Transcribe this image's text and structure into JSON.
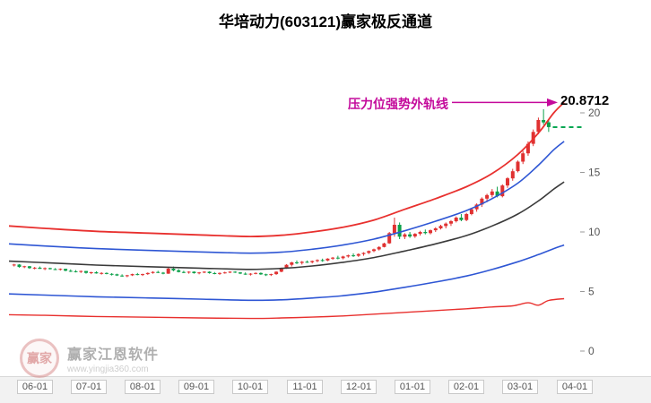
{
  "page": {
    "title": "华培动力(603121)赢家极反通道"
  },
  "annotation": {
    "label": "压力位强势外轨线",
    "value": "20.8712"
  },
  "watermark": {
    "logo": "赢家",
    "name": "赢家江恩软件",
    "url": "www.yingjia360.com"
  },
  "chart_data": {
    "type": "candlestick",
    "title": "华培动力(603121)赢家极反通道",
    "stock_name": "华培动力",
    "symbol": "603121",
    "channel_name": "赢家极反通道",
    "resistance": {
      "label": "压力位强势外轨线",
      "value": 20.8712
    },
    "last_close_line": {
      "value": 18.8,
      "x_from": 104.8,
      "x_to": 111,
      "color": "#00a651",
      "style": "dashed"
    },
    "ylim": [
      0,
      23
    ],
    "y_ticks": [
      0,
      5,
      10,
      15,
      20
    ],
    "x_domain": [
      -1,
      111
    ],
    "x_ticks": [
      {
        "label": "06-01",
        "i": 4
      },
      {
        "label": "07-01",
        "i": 14.5
      },
      {
        "label": "08-01",
        "i": 25
      },
      {
        "label": "09-01",
        "i": 35.5
      },
      {
        "label": "10-01",
        "i": 46
      },
      {
        "label": "11-01",
        "i": 56.5
      },
      {
        "label": "12-01",
        "i": 67
      },
      {
        "label": "01-01",
        "i": 77.5
      },
      {
        "label": "02-01",
        "i": 88
      },
      {
        "label": "03-01",
        "i": 98.5
      },
      {
        "label": "04-01",
        "i": 109
      }
    ],
    "colors": {
      "up": "#e03131",
      "down": "#0ca04a",
      "annotation": "#c40a9b"
    },
    "candles": [
      [
        7.2,
        7.32,
        7.1,
        7.26
      ],
      [
        7.26,
        7.3,
        7.0,
        7.06
      ],
      [
        7.06,
        7.16,
        6.96,
        7.12
      ],
      [
        7.12,
        7.14,
        6.9,
        6.96
      ],
      [
        6.96,
        7.06,
        6.86,
        7.0
      ],
      [
        7.0,
        7.1,
        6.9,
        6.9
      ],
      [
        6.9,
        7.02,
        6.8,
        6.96
      ],
      [
        6.96,
        7.0,
        6.84,
        6.88
      ],
      [
        6.88,
        6.96,
        6.8,
        6.84
      ],
      [
        6.84,
        6.94,
        6.76,
        6.9
      ],
      [
        6.9,
        6.92,
        6.7,
        6.74
      ],
      [
        6.74,
        6.86,
        6.64,
        6.7
      ],
      [
        6.7,
        6.8,
        6.6,
        6.66
      ],
      [
        6.66,
        6.76,
        6.56,
        6.72
      ],
      [
        6.72,
        6.72,
        6.5,
        6.56
      ],
      [
        6.56,
        6.66,
        6.46,
        6.62
      ],
      [
        6.62,
        6.7,
        6.5,
        6.52
      ],
      [
        6.52,
        6.62,
        6.42,
        6.56
      ],
      [
        6.56,
        6.6,
        6.44,
        6.48
      ],
      [
        6.48,
        6.54,
        6.34,
        6.44
      ],
      [
        6.44,
        6.5,
        6.3,
        6.34
      ],
      [
        6.34,
        6.44,
        6.24,
        6.3
      ],
      [
        6.3,
        6.4,
        6.2,
        6.36
      ],
      [
        6.36,
        6.5,
        6.3,
        6.46
      ],
      [
        6.46,
        6.56,
        6.36,
        6.4
      ],
      [
        6.4,
        6.5,
        6.3,
        6.46
      ],
      [
        6.46,
        6.6,
        6.4,
        6.56
      ],
      [
        6.56,
        6.7,
        6.5,
        6.64
      ],
      [
        6.64,
        6.74,
        6.54,
        6.58
      ],
      [
        6.58,
        6.64,
        6.44,
        6.5
      ],
      [
        6.5,
        7.0,
        6.48,
        6.92
      ],
      [
        6.92,
        7.1,
        6.7,
        6.78
      ],
      [
        6.78,
        6.88,
        6.6,
        6.64
      ],
      [
        6.64,
        6.74,
        6.54,
        6.6
      ],
      [
        6.6,
        6.7,
        6.5,
        6.66
      ],
      [
        6.66,
        6.7,
        6.5,
        6.54
      ],
      [
        6.54,
        6.64,
        6.44,
        6.6
      ],
      [
        6.6,
        6.7,
        6.54,
        6.66
      ],
      [
        6.66,
        6.7,
        6.5,
        6.54
      ],
      [
        6.54,
        6.64,
        6.44,
        6.5
      ],
      [
        6.5,
        6.6,
        6.4,
        6.56
      ],
      [
        6.56,
        6.66,
        6.5,
        6.6
      ],
      [
        6.6,
        6.7,
        6.54,
        6.66
      ],
      [
        6.66,
        6.7,
        6.56,
        6.6
      ],
      [
        6.6,
        6.64,
        6.46,
        6.5
      ],
      [
        6.5,
        6.6,
        6.4,
        6.44
      ],
      [
        6.44,
        6.54,
        6.34,
        6.5
      ],
      [
        6.5,
        6.6,
        6.44,
        6.56
      ],
      [
        6.56,
        6.6,
        6.4,
        6.44
      ],
      [
        6.44,
        6.5,
        6.3,
        6.4
      ],
      [
        6.4,
        6.5,
        6.3,
        6.46
      ],
      [
        6.46,
        6.7,
        6.4,
        6.66
      ],
      [
        6.66,
        7.0,
        6.62,
        6.96
      ],
      [
        6.96,
        7.3,
        6.9,
        7.24
      ],
      [
        7.24,
        7.5,
        7.1,
        7.44
      ],
      [
        7.44,
        7.6,
        7.3,
        7.4
      ],
      [
        7.4,
        7.56,
        7.26,
        7.5
      ],
      [
        7.5,
        7.6,
        7.4,
        7.46
      ],
      [
        7.46,
        7.6,
        7.36,
        7.56
      ],
      [
        7.56,
        7.7,
        7.46,
        7.64
      ],
      [
        7.64,
        7.76,
        7.5,
        7.6
      ],
      [
        7.6,
        7.8,
        7.54,
        7.76
      ],
      [
        7.76,
        7.9,
        7.66,
        7.84
      ],
      [
        7.84,
        8.0,
        7.7,
        7.8
      ],
      [
        7.8,
        8.0,
        7.7,
        7.94
      ],
      [
        7.94,
        8.1,
        7.84,
        8.04
      ],
      [
        8.04,
        8.2,
        7.9,
        8.0
      ],
      [
        8.0,
        8.2,
        7.9,
        8.14
      ],
      [
        8.14,
        8.3,
        8.0,
        8.24
      ],
      [
        8.24,
        8.44,
        8.14,
        8.4
      ],
      [
        8.4,
        8.6,
        8.3,
        8.54
      ],
      [
        8.54,
        8.8,
        8.44,
        8.74
      ],
      [
        8.74,
        9.1,
        8.7,
        9.04
      ],
      [
        9.04,
        10.0,
        9.0,
        9.9
      ],
      [
        9.9,
        11.2,
        9.6,
        10.6
      ],
      [
        10.6,
        10.8,
        9.4,
        9.6
      ],
      [
        9.6,
        9.9,
        9.4,
        9.8
      ],
      [
        9.8,
        10.0,
        9.5,
        9.62
      ],
      [
        9.62,
        9.9,
        9.5,
        9.84
      ],
      [
        9.84,
        10.1,
        9.7,
        10.0
      ],
      [
        10.0,
        10.2,
        9.8,
        9.9
      ],
      [
        9.9,
        10.2,
        9.8,
        10.14
      ],
      [
        10.14,
        10.4,
        10.0,
        10.3
      ],
      [
        10.3,
        10.6,
        10.2,
        10.5
      ],
      [
        10.5,
        10.8,
        10.3,
        10.7
      ],
      [
        10.7,
        11.0,
        10.5,
        10.9
      ],
      [
        10.9,
        11.3,
        10.8,
        11.2
      ],
      [
        11.2,
        11.5,
        10.9,
        11.0
      ],
      [
        11.0,
        11.6,
        10.9,
        11.5
      ],
      [
        11.5,
        12.0,
        11.4,
        11.9
      ],
      [
        11.9,
        12.4,
        11.7,
        12.3
      ],
      [
        12.3,
        12.9,
        12.1,
        12.8
      ],
      [
        12.8,
        13.2,
        12.5,
        13.1
      ],
      [
        13.1,
        13.6,
        12.9,
        13.4
      ],
      [
        13.4,
        13.8,
        12.9,
        13.0
      ],
      [
        13.0,
        14.0,
        12.9,
        13.9
      ],
      [
        13.9,
        14.6,
        13.7,
        14.5
      ],
      [
        14.5,
        15.3,
        14.3,
        15.1
      ],
      [
        15.1,
        16.0,
        15.0,
        15.9
      ],
      [
        15.9,
        16.8,
        15.7,
        16.6
      ],
      [
        16.6,
        17.6,
        16.4,
        17.4
      ],
      [
        17.4,
        18.6,
        17.2,
        18.4
      ],
      [
        18.4,
        19.6,
        18.2,
        19.4
      ],
      [
        19.4,
        20.3,
        19.0,
        19.2
      ],
      [
        19.2,
        19.4,
        18.4,
        18.8
      ]
    ],
    "lines": [
      {
        "name": "upper-outer-rail-red",
        "color": "#e8302e",
        "width": 1.8,
        "points": [
          [
            -1,
            10.5
          ],
          [
            6,
            10.3
          ],
          [
            16,
            10.05
          ],
          [
            26,
            9.9
          ],
          [
            36,
            9.75
          ],
          [
            46,
            9.62
          ],
          [
            52,
            9.72
          ],
          [
            58,
            10.0
          ],
          [
            64,
            10.4
          ],
          [
            70,
            11.0
          ],
          [
            76,
            11.9
          ],
          [
            82,
            12.8
          ],
          [
            88,
            13.8
          ],
          [
            93,
            14.9
          ],
          [
            98,
            16.5
          ],
          [
            102,
            18.3
          ],
          [
            105,
            20.0
          ],
          [
            107,
            20.87
          ]
        ]
      },
      {
        "name": "upper-inner-rail-blue",
        "color": "#2e56d4",
        "width": 1.6,
        "points": [
          [
            -1,
            9.0
          ],
          [
            6,
            8.82
          ],
          [
            16,
            8.6
          ],
          [
            26,
            8.45
          ],
          [
            36,
            8.32
          ],
          [
            46,
            8.22
          ],
          [
            52,
            8.3
          ],
          [
            58,
            8.55
          ],
          [
            64,
            8.9
          ],
          [
            70,
            9.4
          ],
          [
            76,
            10.1
          ],
          [
            82,
            10.9
          ],
          [
            88,
            11.8
          ],
          [
            93,
            12.8
          ],
          [
            98,
            14.1
          ],
          [
            102,
            15.6
          ],
          [
            105,
            16.9
          ],
          [
            107,
            17.6
          ]
        ]
      },
      {
        "name": "mid-rail-black",
        "color": "#3a3a3a",
        "width": 1.6,
        "points": [
          [
            -1,
            7.55
          ],
          [
            6,
            7.42
          ],
          [
            16,
            7.22
          ],
          [
            26,
            7.08
          ],
          [
            36,
            6.96
          ],
          [
            46,
            6.86
          ],
          [
            52,
            6.94
          ],
          [
            58,
            7.14
          ],
          [
            64,
            7.45
          ],
          [
            70,
            7.85
          ],
          [
            76,
            8.4
          ],
          [
            82,
            9.0
          ],
          [
            88,
            9.7
          ],
          [
            93,
            10.5
          ],
          [
            98,
            11.5
          ],
          [
            102,
            12.6
          ],
          [
            105,
            13.6
          ],
          [
            107,
            14.2
          ]
        ]
      },
      {
        "name": "lower-inner-rail-blue",
        "color": "#2e56d4",
        "width": 1.6,
        "points": [
          [
            -1,
            4.8
          ],
          [
            6,
            4.7
          ],
          [
            16,
            4.56
          ],
          [
            26,
            4.46
          ],
          [
            36,
            4.36
          ],
          [
            46,
            4.26
          ],
          [
            52,
            4.3
          ],
          [
            58,
            4.45
          ],
          [
            64,
            4.65
          ],
          [
            70,
            4.95
          ],
          [
            76,
            5.35
          ],
          [
            82,
            5.8
          ],
          [
            88,
            6.3
          ],
          [
            93,
            6.85
          ],
          [
            98,
            7.5
          ],
          [
            102,
            8.1
          ],
          [
            105,
            8.6
          ],
          [
            107,
            8.9
          ]
        ]
      },
      {
        "name": "lower-outer-rail-red",
        "color": "#e8302e",
        "width": 1.4,
        "points": [
          [
            -1,
            3.05
          ],
          [
            6,
            3.0
          ],
          [
            16,
            2.9
          ],
          [
            26,
            2.84
          ],
          [
            36,
            2.78
          ],
          [
            46,
            2.74
          ],
          [
            52,
            2.78
          ],
          [
            58,
            2.85
          ],
          [
            64,
            2.95
          ],
          [
            70,
            3.1
          ],
          [
            76,
            3.25
          ],
          [
            82,
            3.4
          ],
          [
            88,
            3.55
          ],
          [
            93,
            3.7
          ],
          [
            97,
            3.8
          ],
          [
            100,
            4.05
          ],
          [
            102,
            3.85
          ],
          [
            104,
            4.25
          ],
          [
            107,
            4.4
          ]
        ]
      }
    ]
  }
}
